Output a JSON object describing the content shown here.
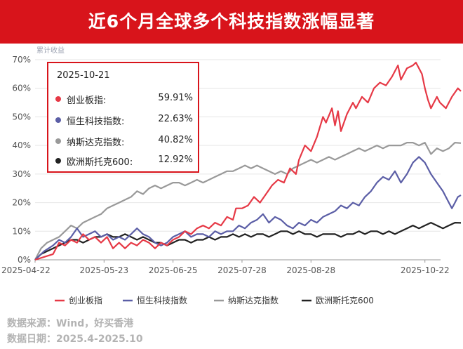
{
  "title": "近6个月全球多个科技指数涨幅显著",
  "chart_data": {
    "type": "line",
    "ylabel": "累计收益",
    "ylim": [
      0,
      70
    ],
    "yticks": [
      "0%",
      "10%",
      "20%",
      "30%",
      "40%",
      "50%",
      "60%",
      "70%"
    ],
    "xtick_labels": [
      "2025-04-22",
      "2025-05-23",
      "2025-06-25",
      "2025-07-28",
      "2025-08-28",
      "2025-10-22"
    ],
    "xtick_positions": [
      0,
      23,
      46,
      69,
      92,
      130
    ],
    "x_count": 131,
    "series": [
      {
        "name": "创业板指",
        "color": "#e63946",
        "points": [
          [
            0,
            0
          ],
          [
            3,
            1
          ],
          [
            6,
            2
          ],
          [
            8,
            6
          ],
          [
            10,
            5
          ],
          [
            12,
            7
          ],
          [
            14,
            6
          ],
          [
            16,
            9
          ],
          [
            18,
            7
          ],
          [
            20,
            8
          ],
          [
            22,
            6
          ],
          [
            24,
            8
          ],
          [
            26,
            4
          ],
          [
            28,
            6
          ],
          [
            30,
            4
          ],
          [
            32,
            6
          ],
          [
            34,
            5
          ],
          [
            36,
            7
          ],
          [
            38,
            6
          ],
          [
            40,
            4
          ],
          [
            42,
            6
          ],
          [
            44,
            5
          ],
          [
            46,
            7
          ],
          [
            48,
            8
          ],
          [
            50,
            10
          ],
          [
            52,
            9
          ],
          [
            54,
            11
          ],
          [
            56,
            12
          ],
          [
            58,
            11
          ],
          [
            60,
            13
          ],
          [
            62,
            12
          ],
          [
            64,
            15
          ],
          [
            66,
            14
          ],
          [
            67,
            18
          ],
          [
            69,
            18
          ],
          [
            71,
            19
          ],
          [
            73,
            22
          ],
          [
            75,
            20
          ],
          [
            77,
            23
          ],
          [
            79,
            26
          ],
          [
            81,
            28
          ],
          [
            83,
            27
          ],
          [
            85,
            32
          ],
          [
            87,
            30
          ],
          [
            88,
            35
          ],
          [
            90,
            40
          ],
          [
            92,
            38
          ],
          [
            94,
            43
          ],
          [
            96,
            50
          ],
          [
            97,
            48
          ],
          [
            99,
            53
          ],
          [
            100,
            47
          ],
          [
            101,
            52
          ],
          [
            102,
            45
          ],
          [
            104,
            51
          ],
          [
            106,
            55
          ],
          [
            107,
            53
          ],
          [
            109,
            57
          ],
          [
            111,
            55
          ],
          [
            113,
            60
          ],
          [
            115,
            62
          ],
          [
            117,
            61
          ],
          [
            119,
            64
          ],
          [
            121,
            68
          ],
          [
            122,
            63
          ],
          [
            124,
            67
          ],
          [
            126,
            68
          ],
          [
            127,
            69
          ],
          [
            128,
            67
          ],
          [
            129,
            65
          ],
          [
            130,
            60
          ],
          [
            131,
            56
          ],
          [
            132,
            53
          ],
          [
            134,
            57
          ],
          [
            135,
            55
          ],
          [
            137,
            53
          ],
          [
            139,
            57
          ],
          [
            141,
            60
          ],
          [
            142,
            59
          ]
        ]
      },
      {
        "name": "恒生科技指数",
        "color": "#5b5ea6",
        "points": [
          [
            0,
            0
          ],
          [
            3,
            3
          ],
          [
            6,
            5
          ],
          [
            8,
            7
          ],
          [
            10,
            6
          ],
          [
            12,
            8
          ],
          [
            14,
            11
          ],
          [
            16,
            8
          ],
          [
            18,
            9
          ],
          [
            20,
            10
          ],
          [
            22,
            8
          ],
          [
            24,
            9
          ],
          [
            26,
            7
          ],
          [
            28,
            8
          ],
          [
            30,
            7
          ],
          [
            32,
            9
          ],
          [
            34,
            11
          ],
          [
            36,
            9
          ],
          [
            38,
            8
          ],
          [
            40,
            6
          ],
          [
            42,
            5
          ],
          [
            44,
            6
          ],
          [
            46,
            8
          ],
          [
            48,
            9
          ],
          [
            50,
            10
          ],
          [
            52,
            8
          ],
          [
            54,
            9
          ],
          [
            56,
            9
          ],
          [
            58,
            8
          ],
          [
            60,
            10
          ],
          [
            62,
            9
          ],
          [
            64,
            10
          ],
          [
            66,
            10
          ],
          [
            68,
            12
          ],
          [
            70,
            11
          ],
          [
            72,
            13
          ],
          [
            74,
            14
          ],
          [
            76,
            16
          ],
          [
            78,
            13
          ],
          [
            80,
            15
          ],
          [
            82,
            14
          ],
          [
            84,
            12
          ],
          [
            86,
            11
          ],
          [
            88,
            13
          ],
          [
            90,
            12
          ],
          [
            92,
            14
          ],
          [
            94,
            13
          ],
          [
            96,
            15
          ],
          [
            98,
            16
          ],
          [
            100,
            17
          ],
          [
            102,
            19
          ],
          [
            104,
            18
          ],
          [
            106,
            20
          ],
          [
            108,
            19
          ],
          [
            110,
            22
          ],
          [
            112,
            24
          ],
          [
            114,
            27
          ],
          [
            116,
            29
          ],
          [
            118,
            28
          ],
          [
            120,
            31
          ],
          [
            122,
            27
          ],
          [
            124,
            30
          ],
          [
            126,
            34
          ],
          [
            128,
            36
          ],
          [
            130,
            34
          ],
          [
            132,
            30
          ],
          [
            134,
            27
          ],
          [
            136,
            24
          ],
          [
            137,
            22
          ],
          [
            138,
            20
          ],
          [
            139,
            18
          ],
          [
            140,
            20
          ],
          [
            141,
            22
          ],
          [
            142,
            22.63
          ]
        ]
      },
      {
        "name": "纳斯达克指数",
        "color": "#999999",
        "points": [
          [
            0,
            0
          ],
          [
            2,
            4
          ],
          [
            4,
            6
          ],
          [
            6,
            7
          ],
          [
            8,
            8
          ],
          [
            10,
            10
          ],
          [
            12,
            12
          ],
          [
            14,
            11
          ],
          [
            16,
            13
          ],
          [
            18,
            14
          ],
          [
            20,
            15
          ],
          [
            22,
            16
          ],
          [
            24,
            18
          ],
          [
            26,
            19
          ],
          [
            28,
            20
          ],
          [
            30,
            21
          ],
          [
            32,
            22
          ],
          [
            34,
            24
          ],
          [
            36,
            23
          ],
          [
            38,
            25
          ],
          [
            40,
            26
          ],
          [
            42,
            25
          ],
          [
            44,
            26
          ],
          [
            46,
            27
          ],
          [
            48,
            27
          ],
          [
            50,
            26
          ],
          [
            52,
            27
          ],
          [
            54,
            28
          ],
          [
            56,
            27
          ],
          [
            58,
            28
          ],
          [
            60,
            29
          ],
          [
            62,
            30
          ],
          [
            64,
            31
          ],
          [
            66,
            31
          ],
          [
            68,
            32
          ],
          [
            70,
            33
          ],
          [
            72,
            32
          ],
          [
            74,
            33
          ],
          [
            76,
            32
          ],
          [
            78,
            31
          ],
          [
            80,
            30
          ],
          [
            82,
            31
          ],
          [
            84,
            30
          ],
          [
            86,
            32
          ],
          [
            88,
            33
          ],
          [
            90,
            34
          ],
          [
            92,
            35
          ],
          [
            94,
            34
          ],
          [
            96,
            35
          ],
          [
            98,
            36
          ],
          [
            100,
            35
          ],
          [
            102,
            36
          ],
          [
            104,
            37
          ],
          [
            106,
            38
          ],
          [
            108,
            39
          ],
          [
            110,
            38
          ],
          [
            112,
            39
          ],
          [
            114,
            40
          ],
          [
            116,
            39
          ],
          [
            118,
            40
          ],
          [
            120,
            40
          ],
          [
            122,
            40
          ],
          [
            124,
            41
          ],
          [
            126,
            41
          ],
          [
            128,
            40
          ],
          [
            130,
            41
          ],
          [
            132,
            37
          ],
          [
            134,
            39
          ],
          [
            136,
            38
          ],
          [
            138,
            39
          ],
          [
            140,
            41
          ],
          [
            142,
            40.82
          ]
        ]
      },
      {
        "name": "欧洲斯托克600",
        "color": "#222222",
        "points": [
          [
            0,
            0
          ],
          [
            2,
            2
          ],
          [
            4,
            3
          ],
          [
            6,
            4
          ],
          [
            8,
            5
          ],
          [
            10,
            6
          ],
          [
            12,
            7
          ],
          [
            14,
            7
          ],
          [
            16,
            6
          ],
          [
            18,
            7
          ],
          [
            20,
            8
          ],
          [
            22,
            8
          ],
          [
            24,
            9
          ],
          [
            26,
            8
          ],
          [
            28,
            8
          ],
          [
            30,
            9
          ],
          [
            32,
            8
          ],
          [
            34,
            7
          ],
          [
            36,
            8
          ],
          [
            38,
            7
          ],
          [
            40,
            6
          ],
          [
            42,
            6
          ],
          [
            44,
            5
          ],
          [
            46,
            6
          ],
          [
            48,
            7
          ],
          [
            50,
            7
          ],
          [
            52,
            6
          ],
          [
            54,
            7
          ],
          [
            56,
            7
          ],
          [
            58,
            8
          ],
          [
            60,
            7
          ],
          [
            62,
            8
          ],
          [
            64,
            8
          ],
          [
            66,
            9
          ],
          [
            68,
            8
          ],
          [
            70,
            9
          ],
          [
            72,
            8
          ],
          [
            74,
            9
          ],
          [
            76,
            9
          ],
          [
            78,
            8
          ],
          [
            80,
            9
          ],
          [
            82,
            10
          ],
          [
            84,
            10
          ],
          [
            86,
            9
          ],
          [
            88,
            10
          ],
          [
            90,
            9
          ],
          [
            92,
            9
          ],
          [
            94,
            8
          ],
          [
            96,
            9
          ],
          [
            98,
            9
          ],
          [
            100,
            9
          ],
          [
            102,
            8
          ],
          [
            104,
            9
          ],
          [
            106,
            9
          ],
          [
            108,
            10
          ],
          [
            110,
            9
          ],
          [
            112,
            10
          ],
          [
            114,
            10
          ],
          [
            116,
            9
          ],
          [
            118,
            10
          ],
          [
            120,
            9
          ],
          [
            122,
            10
          ],
          [
            124,
            11
          ],
          [
            126,
            12
          ],
          [
            128,
            11
          ],
          [
            130,
            12
          ],
          [
            132,
            13
          ],
          [
            134,
            12
          ],
          [
            136,
            11
          ],
          [
            138,
            12
          ],
          [
            140,
            13
          ],
          [
            142,
            12.92
          ]
        ]
      }
    ],
    "tooltip": {
      "date": "2025-10-21",
      "rows": [
        {
          "name": "创业板指:",
          "value": "59.91%"
        },
        {
          "name": "恒生科技指数:",
          "value": "22.63%"
        },
        {
          "name": "纳斯达克指数:",
          "value": "40.82%"
        },
        {
          "name": "欧洲斯托克600:",
          "value": "12.92%"
        }
      ]
    }
  },
  "footer": {
    "source": "数据来源：Wind，好买香港",
    "date": "数据日期：2025.4-2025.10"
  }
}
